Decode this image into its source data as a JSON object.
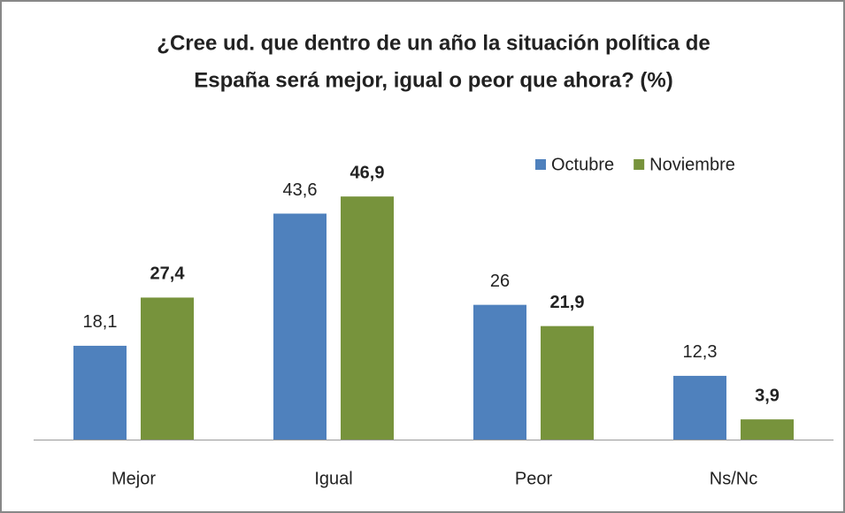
{
  "chart_data": {
    "type": "bar",
    "title": [
      "¿Cree ud. que dentro de un año la situación política de",
      "España será mejor, igual o peor que ahora? (%)"
    ],
    "categories": [
      "Mejor",
      "Igual",
      "Peor",
      "Ns/Nc"
    ],
    "series": [
      {
        "name": "Octubre",
        "color": "#4f81bd",
        "values": [
          18.1,
          43.6,
          26,
          12.3
        ],
        "value_labels": [
          "18,1",
          "43,6",
          "26",
          "12,3"
        ]
      },
      {
        "name": "Noviembre",
        "color": "#77933c",
        "values": [
          27.4,
          46.9,
          21.9,
          3.9
        ],
        "value_labels": [
          "27,4",
          "46,9",
          "21,9",
          "3,9"
        ]
      }
    ],
    "ylim": [
      0,
      50
    ],
    "legend": "top-right"
  }
}
